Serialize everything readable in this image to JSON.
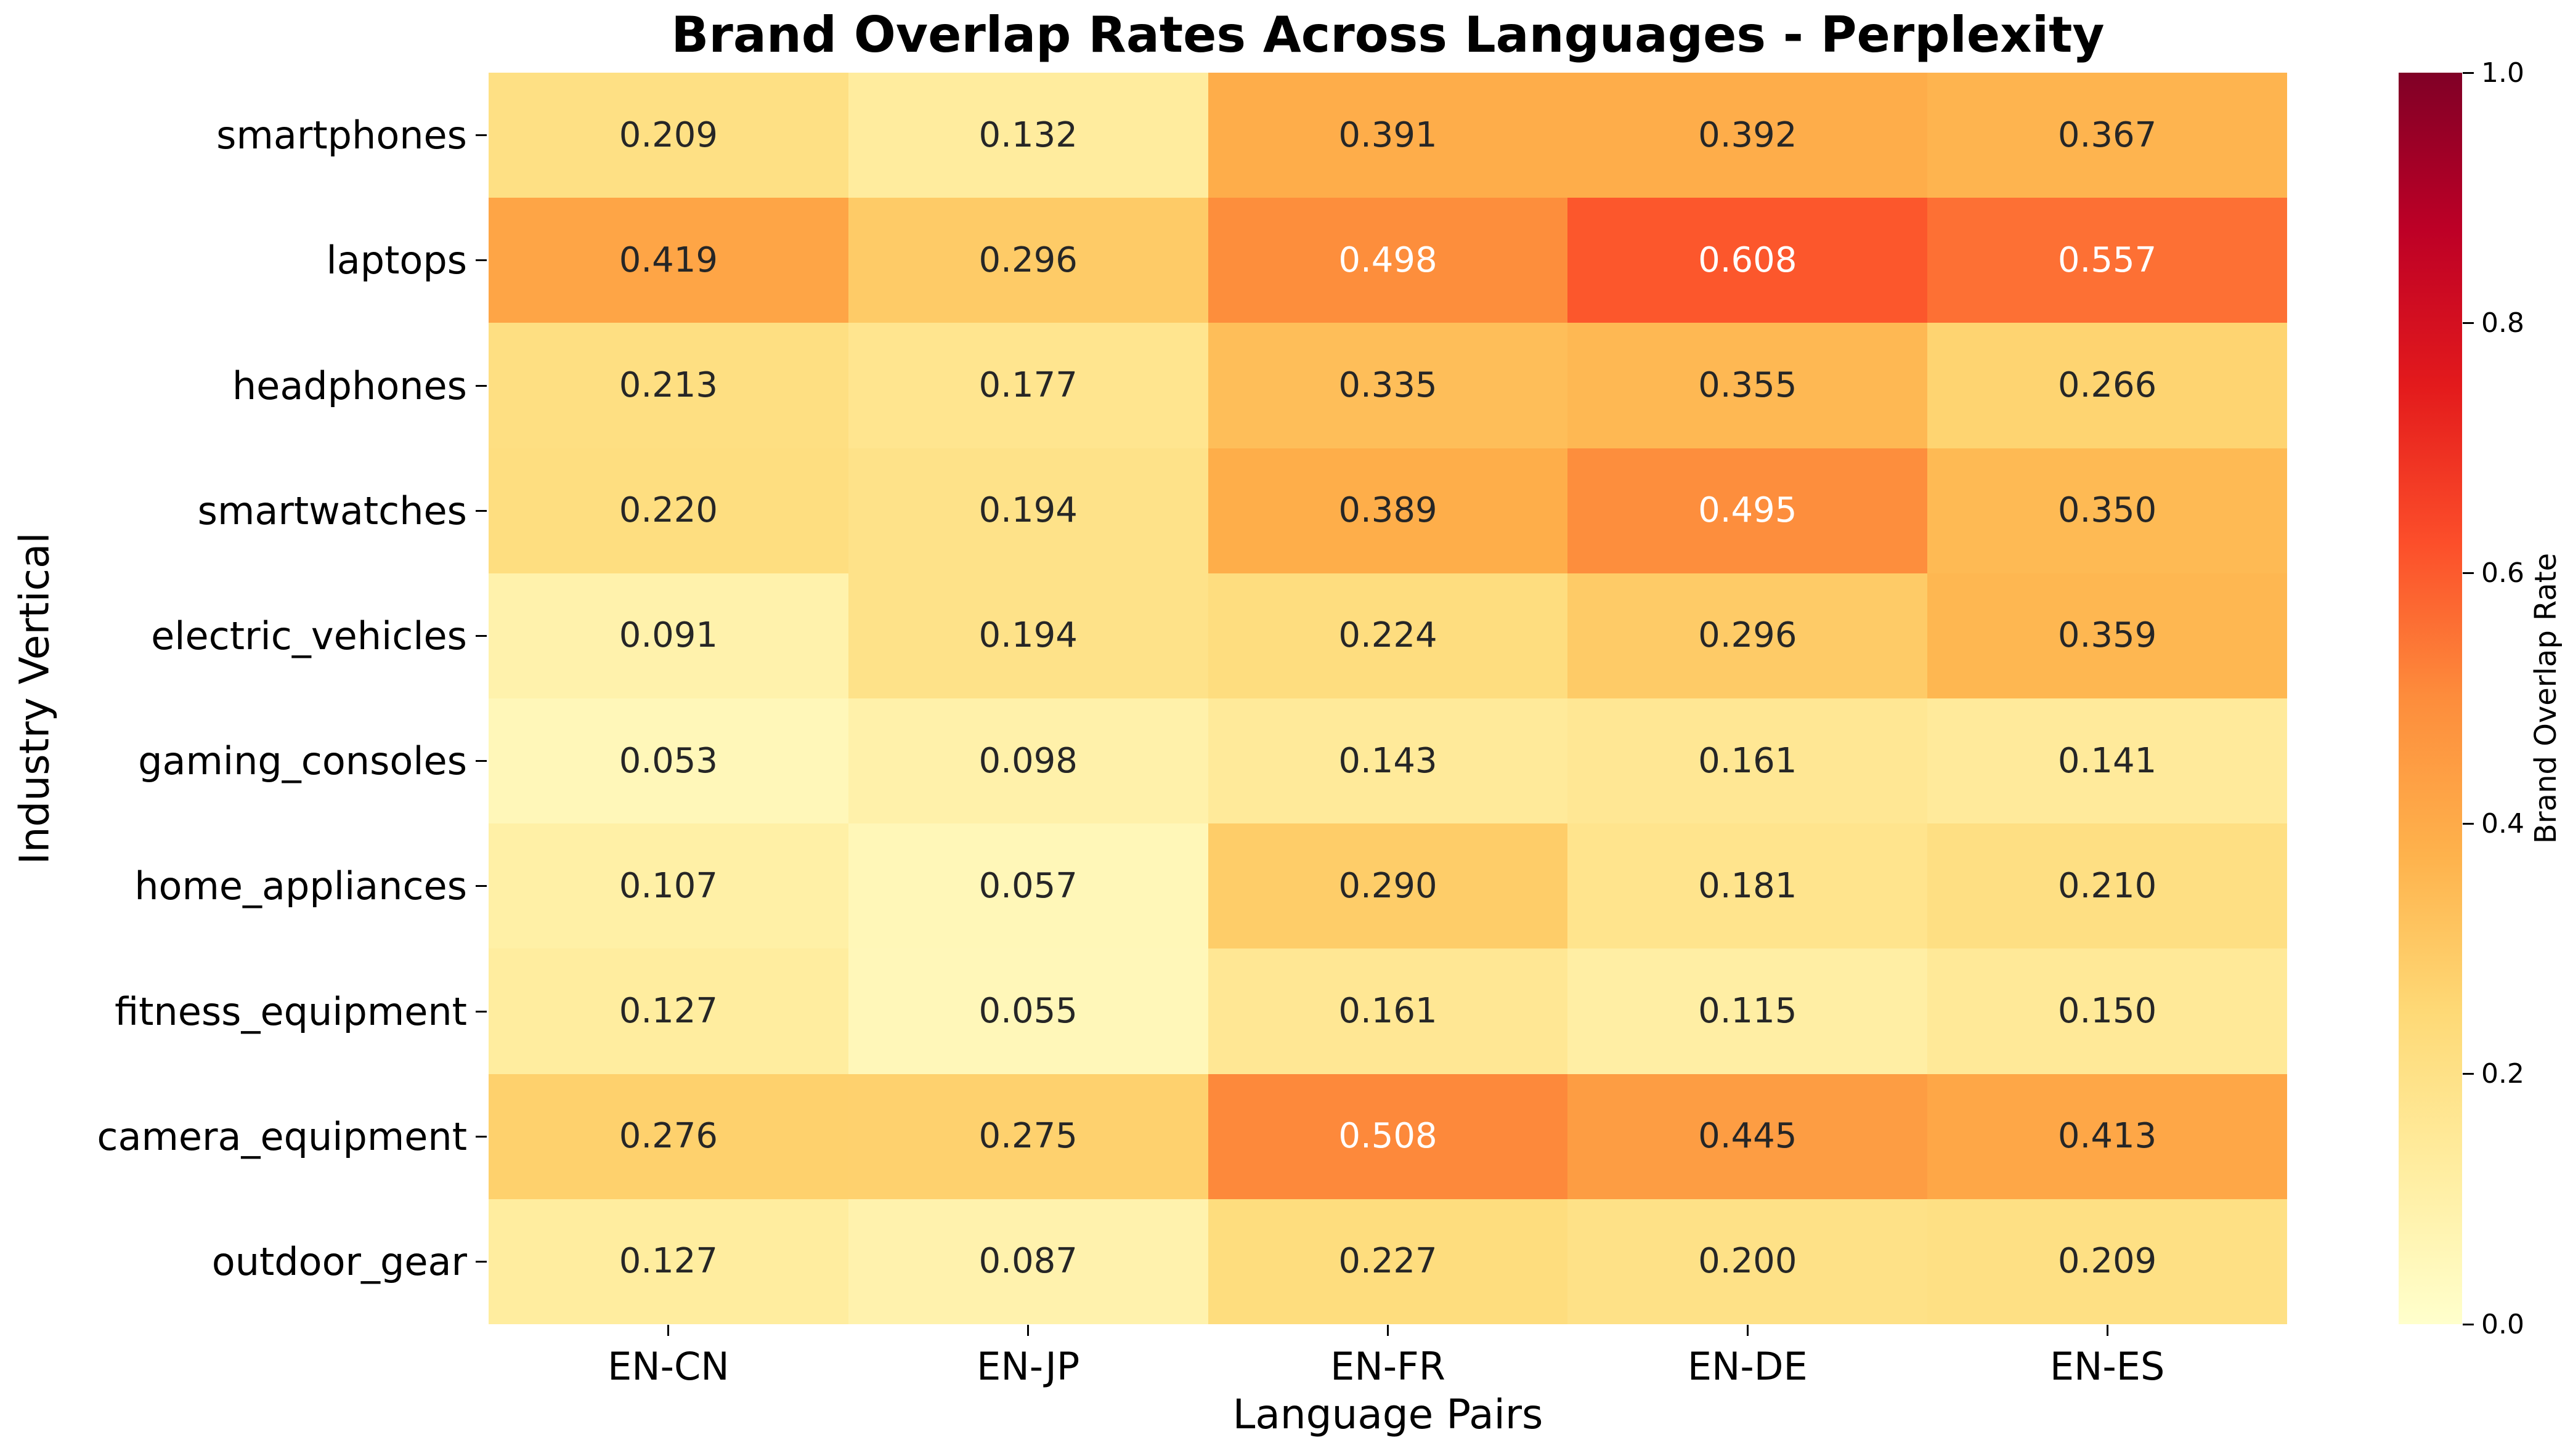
{
  "title": "Brand Overlap Rates Across Languages - Perplexity",
  "chart_data": {
    "type": "heatmap",
    "title": "Brand Overlap Rates Across Languages - Perplexity",
    "xlabel": "Language Pairs",
    "ylabel": "Industry Vertical",
    "x_categories": [
      "EN-CN",
      "EN-JP",
      "EN-FR",
      "EN-DE",
      "EN-ES"
    ],
    "y_categories": [
      "smartphones",
      "laptops",
      "headphones",
      "smartwatches",
      "electric_vehicles",
      "gaming_consoles",
      "home_appliances",
      "fitness_equipment",
      "camera_equipment",
      "outdoor_gear"
    ],
    "values": [
      [
        0.209,
        0.132,
        0.391,
        0.392,
        0.367
      ],
      [
        0.419,
        0.296,
        0.498,
        0.608,
        0.557
      ],
      [
        0.213,
        0.177,
        0.335,
        0.355,
        0.266
      ],
      [
        0.22,
        0.194,
        0.389,
        0.495,
        0.35
      ],
      [
        0.091,
        0.194,
        0.224,
        0.296,
        0.359
      ],
      [
        0.053,
        0.098,
        0.143,
        0.161,
        0.141
      ],
      [
        0.107,
        0.057,
        0.29,
        0.181,
        0.21
      ],
      [
        0.127,
        0.055,
        0.161,
        0.115,
        0.15
      ],
      [
        0.276,
        0.275,
        0.508,
        0.445,
        0.413
      ],
      [
        0.127,
        0.087,
        0.227,
        0.2,
        0.209
      ]
    ],
    "value_decimals": 3,
    "grid": false,
    "legend_position": "none",
    "colormap_name": "YlOrRd",
    "colormap_stops": [
      [
        0.0,
        "#ffffcc"
      ],
      [
        0.125,
        "#ffeda0"
      ],
      [
        0.25,
        "#fed976"
      ],
      [
        0.375,
        "#feb24c"
      ],
      [
        0.5,
        "#fd8d3c"
      ],
      [
        0.625,
        "#fc4e2a"
      ],
      [
        0.75,
        "#e31a1c"
      ],
      [
        0.875,
        "#bd0026"
      ],
      [
        1.0,
        "#800026"
      ]
    ],
    "annotation_dark_text_color": "#262626",
    "annotation_light_text_color": "#ffffff",
    "colorbar": {
      "label": "Brand Overlap Rate",
      "min": 0.0,
      "max": 1.0,
      "ticks": [
        "0.0",
        "0.2",
        "0.4",
        "0.6",
        "0.8",
        "1.0"
      ]
    }
  }
}
